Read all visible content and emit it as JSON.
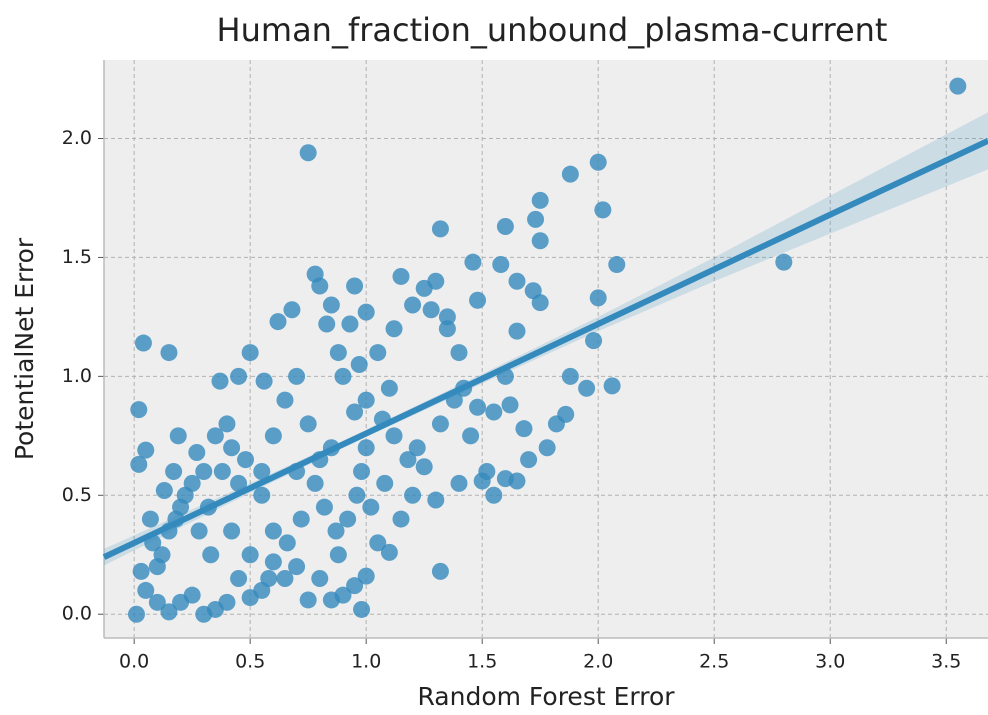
{
  "chart_data": {
    "type": "scatter",
    "title": "Human_fraction_unbound_plasma-current",
    "x_label": "Random Forest Error",
    "y_label": "PotentialNet Error",
    "color": "#348abd",
    "grid": true,
    "xlim": [
      -0.13,
      3.68
    ],
    "ylim": [
      -0.1,
      2.33
    ],
    "xticks": [
      {
        "value": 0,
        "label": "0.0"
      },
      0.5,
      {
        "value": 1,
        "label": "1.0"
      },
      1.5,
      {
        "value": 2,
        "label": "2.0"
      },
      2.5,
      {
        "value": 3,
        "label": "3.0"
      },
      3.5
    ],
    "yticks": [
      {
        "value": 0,
        "label": "0.0"
      },
      0.5,
      {
        "value": 1,
        "label": "1.0"
      },
      1.5,
      {
        "value": 2,
        "label": "2.0"
      }
    ],
    "x": [
      3.55,
      2.8,
      0.75,
      2.0,
      1.88,
      2.02,
      1.75,
      1.73,
      1.75,
      1.6,
      1.32,
      2.08,
      2.0,
      1.98,
      2.06,
      1.95,
      1.88,
      1.32,
      0.02,
      0.04,
      0.15,
      0.02,
      0.05,
      0.01,
      0.98,
      1.58,
      1.46,
      1.65,
      1.72,
      1.75,
      1.65,
      1.6,
      1.7,
      1.65,
      1.6,
      1.55,
      1.5,
      1.45,
      1.48,
      1.4,
      1.3,
      1.2,
      1.15,
      1.1,
      1.05,
      1.0,
      0.95,
      0.9,
      0.85,
      0.8,
      0.75,
      0.7,
      0.65,
      0.6,
      0.55,
      0.5,
      0.45,
      0.4,
      0.35,
      0.3,
      0.25,
      0.2,
      0.15,
      0.1,
      0.05,
      0.03,
      0.08,
      0.12,
      0.18,
      0.22,
      0.28,
      0.32,
      0.38,
      0.42,
      0.45,
      0.5,
      0.55,
      0.6,
      0.65,
      0.68,
      0.62,
      0.7,
      0.75,
      0.8,
      0.85,
      0.88,
      0.9,
      0.95,
      1.0,
      1.05,
      1.1,
      1.12,
      1.15,
      1.2,
      1.25,
      1.3,
      1.35,
      1.4,
      1.42,
      1.38,
      1.35,
      1.28,
      1.22,
      1.18,
      1.08,
      1.02,
      0.98,
      0.92,
      0.87,
      0.82,
      0.78,
      0.72,
      0.66,
      0.6,
      0.55,
      0.48,
      0.4,
      0.35,
      0.3,
      0.25,
      0.2,
      0.15,
      0.1,
      0.07,
      0.13,
      0.17,
      0.19,
      0.27,
      0.37,
      0.45,
      0.5,
      0.56,
      0.78,
      0.8,
      0.85,
      0.95,
      1.0,
      0.83,
      0.93,
      0.97,
      1.07,
      1.12,
      1.25,
      1.32,
      1.48,
      1.52,
      1.55,
      1.62,
      1.78,
      1.82,
      1.86,
      1.68,
      0.33,
      0.42,
      0.58,
      0.7,
      0.88,
      1.0,
      0.96
    ],
    "y": [
      2.22,
      1.48,
      1.94,
      1.9,
      1.85,
      1.7,
      1.74,
      1.66,
      1.57,
      1.63,
      1.62,
      1.47,
      1.33,
      1.15,
      0.96,
      0.95,
      1.0,
      0.18,
      0.86,
      1.14,
      1.1,
      0.63,
      0.69,
      0.0,
      0.02,
      1.47,
      1.48,
      1.4,
      1.36,
      1.31,
      1.19,
      1.0,
      0.65,
      0.56,
      0.57,
      0.5,
      0.56,
      0.75,
      0.87,
      0.55,
      0.48,
      0.5,
      0.4,
      0.26,
      0.3,
      0.16,
      0.12,
      0.08,
      0.06,
      0.15,
      0.06,
      0.2,
      0.15,
      0.22,
      0.1,
      0.07,
      0.15,
      0.05,
      0.02,
      0.0,
      0.08,
      0.05,
      0.01,
      0.05,
      0.1,
      0.18,
      0.3,
      0.25,
      0.4,
      0.5,
      0.35,
      0.45,
      0.6,
      0.7,
      0.55,
      0.25,
      0.5,
      0.75,
      0.9,
      1.28,
      1.23,
      1.0,
      0.8,
      0.65,
      0.7,
      1.1,
      1.0,
      0.85,
      0.9,
      1.1,
      0.95,
      1.2,
      1.42,
      1.3,
      1.37,
      1.4,
      1.25,
      1.1,
      0.95,
      0.9,
      1.2,
      1.28,
      0.7,
      0.65,
      0.55,
      0.45,
      0.6,
      0.4,
      0.35,
      0.45,
      0.55,
      0.4,
      0.3,
      0.35,
      0.6,
      0.65,
      0.8,
      0.75,
      0.6,
      0.55,
      0.45,
      0.35,
      0.2,
      0.4,
      0.52,
      0.6,
      0.75,
      0.68,
      0.98,
      1.0,
      1.1,
      0.98,
      1.43,
      1.38,
      1.3,
      1.38,
      1.27,
      1.22,
      1.22,
      1.05,
      0.82,
      0.75,
      0.62,
      0.8,
      1.32,
      0.6,
      0.85,
      0.88,
      0.7,
      0.8,
      0.84,
      0.78,
      0.25,
      0.35,
      0.15,
      0.6,
      0.25,
      0.7,
      0.5
    ],
    "regression": {
      "color": "#348abd",
      "x": [
        -0.13,
        0.5,
        1.0,
        1.5,
        2.0,
        2.5,
        3.0,
        3.68
      ],
      "y": [
        0.24,
        0.53,
        0.76,
        0.99,
        1.22,
        1.45,
        1.68,
        1.99
      ],
      "lower": [
        0.205,
        0.51,
        0.745,
        0.97,
        1.19,
        1.4,
        1.6,
        1.87
      ],
      "upper": [
        0.275,
        0.55,
        0.775,
        1.01,
        1.25,
        1.5,
        1.76,
        2.11
      ]
    }
  }
}
